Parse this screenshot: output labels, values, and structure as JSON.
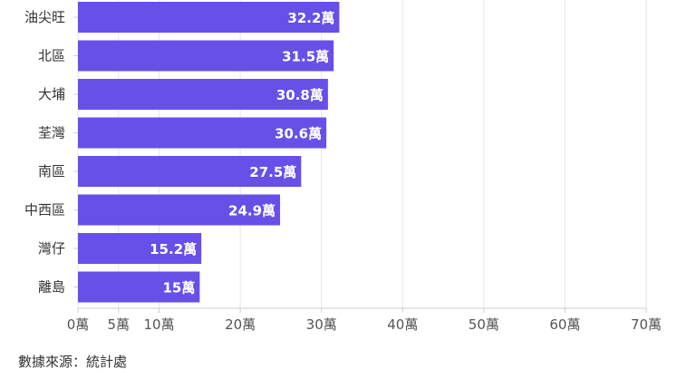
{
  "chart_data": {
    "type": "bar",
    "orientation": "horizontal",
    "categories": [
      "油尖旺",
      "北區",
      "大埔",
      "荃灣",
      "南區",
      "中西區",
      "灣仔",
      "離島"
    ],
    "values": [
      32.2,
      31.5,
      30.8,
      30.6,
      27.5,
      24.9,
      15.2,
      15
    ],
    "value_labels": [
      "32.2萬",
      "31.5萬",
      "30.8萬",
      "30.6萬",
      "27.5萬",
      "24.9萬",
      "15.2萬",
      "15萬"
    ],
    "x_ticks": [
      0,
      5,
      10,
      20,
      30,
      40,
      50,
      60,
      70
    ],
    "x_tick_labels": [
      "0萬",
      "5萬",
      "10萬",
      "20萬",
      "30萬",
      "40萬",
      "50萬",
      "60萬",
      "70萬"
    ],
    "xlim": [
      0,
      70
    ],
    "grid": true,
    "bar_color": "#6650e8"
  },
  "source_text": "數據來源：統計處"
}
